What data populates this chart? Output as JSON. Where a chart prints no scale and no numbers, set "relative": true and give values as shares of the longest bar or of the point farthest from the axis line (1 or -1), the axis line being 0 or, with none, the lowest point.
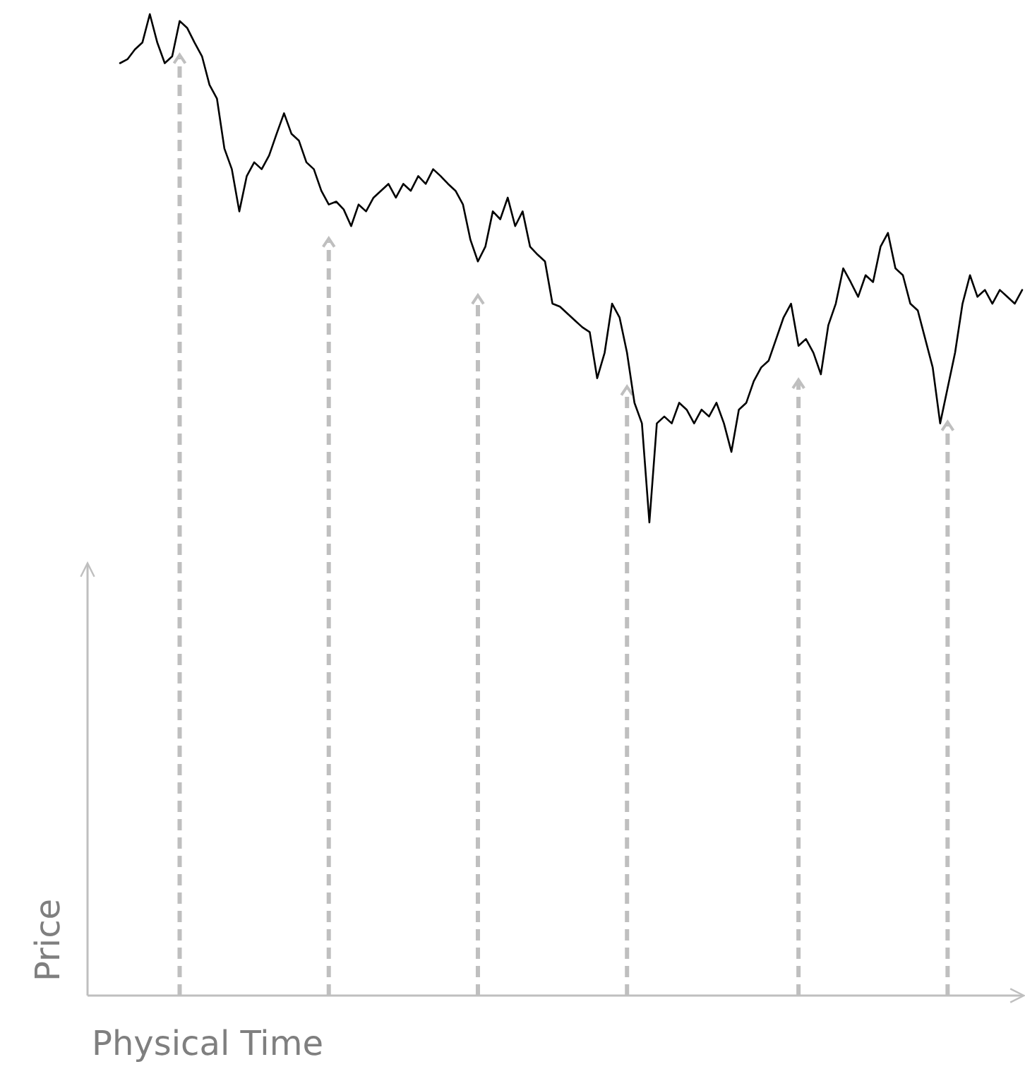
{
  "chart_data": {
    "type": "line",
    "relative": true,
    "xlabel": "Physical Time",
    "ylabel": "Price",
    "grid": "x",
    "categories": [
      null,
      null,
      null,
      null,
      null,
      null,
      null,
      null,
      null,
      null,
      null,
      null,
      null,
      null,
      null,
      null,
      null,
      null,
      null,
      null,
      null,
      null,
      null,
      null,
      null,
      null,
      null,
      null,
      null,
      null,
      null,
      null,
      null,
      null,
      null,
      null,
      null,
      null,
      null,
      null,
      null,
      null,
      null,
      null,
      null,
      null,
      null,
      null,
      null,
      null,
      null,
      null,
      null,
      null,
      null,
      null,
      null,
      null,
      null,
      null,
      null,
      null,
      null,
      null,
      null,
      null,
      null,
      null,
      null,
      null,
      null,
      null,
      null,
      null,
      null,
      null,
      null,
      null,
      null,
      null,
      null,
      null,
      null,
      null,
      null,
      null,
      null,
      null,
      null,
      null,
      null,
      null,
      null,
      null,
      null,
      null,
      null,
      null,
      null,
      null,
      null,
      null,
      null,
      null,
      null,
      null,
      null,
      null,
      null,
      null,
      null,
      null,
      null,
      null,
      null,
      null,
      null,
      null,
      null,
      null,
      null,
      null
    ],
    "series": [
      {
        "color": "#000000",
        "values": [
          0.95,
          0.954,
          0.964,
          0.971,
          1,
          0.971,
          0.95,
          0.957,
          0.993,
          0.986,
          0.971,
          0.957,
          0.928,
          0.914,
          0.863,
          0.842,
          0.799,
          0.835,
          0.849,
          0.842,
          0.856,
          0.878,
          0.899,
          0.878,
          0.871,
          0.849,
          0.842,
          0.82,
          0.806,
          0.809,
          0.801,
          0.784,
          0.806,
          0.799,
          0.813,
          0.82,
          0.827,
          0.813,
          0.827,
          0.82,
          0.835,
          0.827,
          0.842,
          0.835,
          0.827,
          0.82,
          0.806,
          0.77,
          0.748,
          0.763,
          0.799,
          0.791,
          0.813,
          0.784,
          0.799,
          0.763,
          0.755,
          0.748,
          0.705,
          0.702,
          0.695,
          0.688,
          0.681,
          0.676,
          0.629,
          0.655,
          0.705,
          0.691,
          0.655,
          0.604,
          0.583,
          0.482,
          0.583,
          0.59,
          0.583,
          0.604,
          0.597,
          0.583,
          0.597,
          0.59,
          0.604,
          0.583,
          0.554,
          0.597,
          0.604,
          0.626,
          0.64,
          0.647,
          0.669,
          0.691,
          0.705,
          0.662,
          0.669,
          0.655,
          0.633,
          0.683,
          0.705,
          0.741,
          0.727,
          0.712,
          0.734,
          0.727,
          0.763,
          0.777,
          0.741,
          0.734,
          0.705,
          0.698,
          0.669,
          0.64,
          0.583,
          0.619,
          0.655,
          0.705,
          0.734,
          0.712,
          0.719,
          0.705,
          0.719,
          0.712,
          0.705,
          0.719
        ]
      }
    ]
  }
}
